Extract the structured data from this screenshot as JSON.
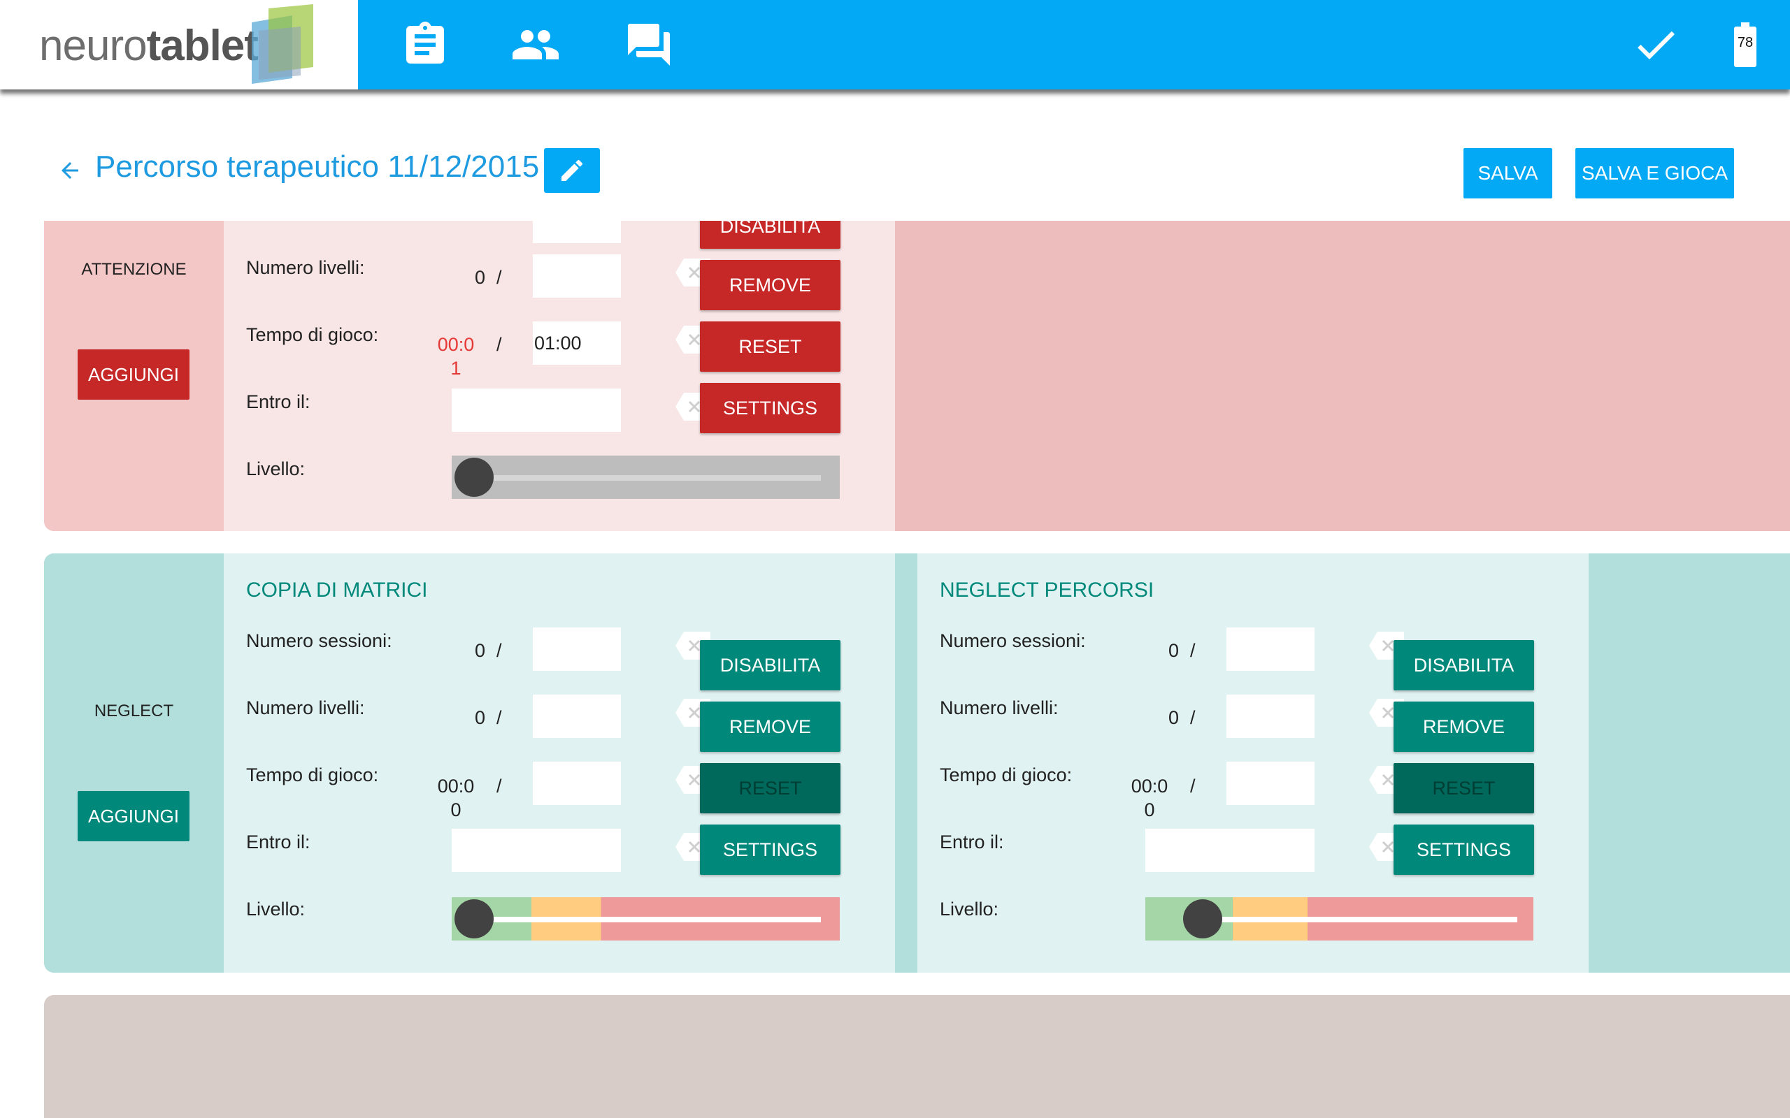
{
  "app": {
    "logo_light": "neuro",
    "logo_bold": "tablet"
  },
  "topbar": {
    "battery_level": "78",
    "icons": [
      "clipboard-icon",
      "people-icon",
      "forum-icon",
      "check-icon",
      "battery-icon"
    ]
  },
  "header": {
    "title": "Percorso terapeutico 11/12/2015",
    "save_label": "SALVA",
    "save_play_label": "SALVA E GIOCA"
  },
  "colors": {
    "primary": "#03a9f4",
    "red": "#c62828",
    "teal": "#00897b",
    "teal_dark": "#00695c"
  },
  "categories": [
    {
      "label": "ATTENZIONE",
      "add_label": "AGGIUNGI",
      "exercises": [
        {
          "partial_label": "DISABILITA",
          "rows": {
            "levels_label": "Numero livelli:",
            "levels_current": "0",
            "levels_value": "",
            "time_label": "Tempo di gioco:",
            "time_current": "00:01",
            "time_value": "01:00",
            "due_label": "Entro il:",
            "due_value": "",
            "level_label": "Livello:"
          },
          "buttons": {
            "remove": "REMOVE",
            "reset": "RESET",
            "settings": "SETTINGS"
          },
          "level_fraction": 0.0
        }
      ]
    },
    {
      "label": "NEGLECT",
      "add_label": "AGGIUNGI",
      "exercises": [
        {
          "title": "COPIA DI MATRICI",
          "rows": {
            "sessions_label": "Numero sessioni:",
            "sessions_current": "0",
            "sessions_value": "",
            "levels_label": "Numero livelli:",
            "levels_current": "0",
            "levels_value": "",
            "time_label": "Tempo di gioco:",
            "time_current": "00:00",
            "time_value": "",
            "due_label": "Entro il:",
            "due_value": "",
            "level_label": "Livello:"
          },
          "buttons": {
            "disable": "DISABILITA",
            "remove": "REMOVE",
            "reset": "RESET",
            "settings": "SETTINGS"
          },
          "level_fraction": 0.0
        },
        {
          "title": "NEGLECT PERCORSI",
          "rows": {
            "sessions_label": "Numero sessioni:",
            "sessions_current": "0",
            "sessions_value": "",
            "levels_label": "Numero livelli:",
            "levels_current": "0",
            "levels_value": "",
            "time_label": "Tempo di gioco:",
            "time_current": "00:00",
            "time_value": "",
            "due_label": "Entro il:",
            "due_value": "",
            "level_label": "Livello:"
          },
          "buttons": {
            "disable": "DISABILITA",
            "remove": "REMOVE",
            "reset": "RESET",
            "settings": "SETTINGS"
          },
          "level_fraction": 0.1
        }
      ]
    }
  ]
}
